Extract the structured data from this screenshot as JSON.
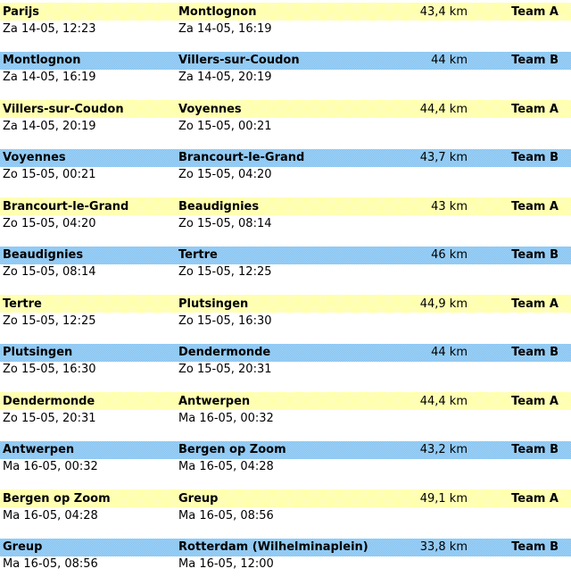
{
  "colors": {
    "row_yellow": "#ffff99",
    "row_yellow_dither": "#ffffcc",
    "row_blue": "#7fbfef",
    "row_blue_dither": "#a6d6f8",
    "text": "#000000",
    "background": "#ffffff"
  },
  "legs": [
    {
      "from": "Parijs",
      "from_time": "Za 14-05, 12:23",
      "to": "Montlognon",
      "to_time": "Za 14-05, 16:19",
      "distance": "43,4 km",
      "team": "Team A",
      "row_color": "yellow"
    },
    {
      "from": "Montlognon",
      "from_time": "Za 14-05, 16:19",
      "to": "Villers-sur-Coudon",
      "to_time": "Za 14-05, 20:19",
      "distance": "44 km",
      "team": "Team B",
      "row_color": "blue"
    },
    {
      "from": "Villers-sur-Coudon",
      "from_time": "Za 14-05, 20:19",
      "to": "Voyennes",
      "to_time": "Zo 15-05, 00:21",
      "distance": "44,4 km",
      "team": "Team A",
      "row_color": "yellow"
    },
    {
      "from": "Voyennes",
      "from_time": "Zo 15-05, 00:21",
      "to": "Brancourt-le-Grand",
      "to_time": "Zo 15-05, 04:20",
      "distance": "43,7 km",
      "team": "Team B",
      "row_color": "blue"
    },
    {
      "from": "Brancourt-le-Grand",
      "from_time": "Zo 15-05, 04:20",
      "to": "Beaudignies",
      "to_time": "Zo 15-05, 08:14",
      "distance": "43 km",
      "team": "Team A",
      "row_color": "yellow"
    },
    {
      "from": "Beaudignies",
      "from_time": "Zo 15-05, 08:14",
      "to": "Tertre",
      "to_time": "Zo 15-05, 12:25",
      "distance": "46 km",
      "team": "Team B",
      "row_color": "blue"
    },
    {
      "from": "Tertre",
      "from_time": "Zo 15-05, 12:25",
      "to": "Plutsingen",
      "to_time": "Zo 15-05, 16:30",
      "distance": "44,9 km",
      "team": "Team A",
      "row_color": "yellow"
    },
    {
      "from": "Plutsingen",
      "from_time": "Zo 15-05, 16:30",
      "to": "Dendermonde",
      "to_time": "Zo 15-05, 20:31",
      "distance": "44 km",
      "team": "Team B",
      "row_color": "blue"
    },
    {
      "from": "Dendermonde",
      "from_time": "Zo 15-05, 20:31",
      "to": "Antwerpen",
      "to_time": "Ma 16-05, 00:32",
      "distance": "44,4 km",
      "team": "Team A",
      "row_color": "yellow"
    },
    {
      "from": "Antwerpen",
      "from_time": "Ma 16-05, 00:32",
      "to": "Bergen op Zoom",
      "to_time": "Ma 16-05, 04:28",
      "distance": "43,2 km",
      "team": "Team B",
      "row_color": "blue"
    },
    {
      "from": "Bergen op Zoom",
      "from_time": "Ma 16-05, 04:28",
      "to": "Greup",
      "to_time": "Ma 16-05, 08:56",
      "distance": "49,1 km",
      "team": "Team A",
      "row_color": "yellow"
    },
    {
      "from": "Greup",
      "from_time": "Ma 16-05, 08:56",
      "to": "Rotterdam (Wilhelminaplein)",
      "to_time": "Ma 16-05, 12:00",
      "distance": "33,8 km",
      "team": "Team B",
      "row_color": "blue"
    }
  ]
}
